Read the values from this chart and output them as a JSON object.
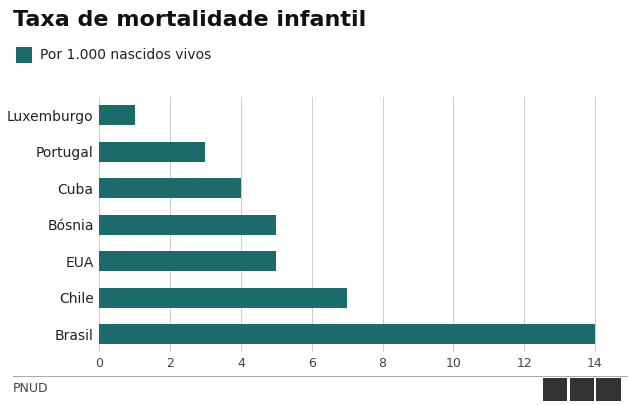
{
  "title": "Taxa de mortalidade infantil",
  "legend_label": "Por 1.000 nascidos vivos",
  "source_left": "PNUD",
  "bar_color": "#1c6b6b",
  "categories": [
    "Brasil",
    "Chile",
    "EUA",
    "Bósnia",
    "Cuba",
    "Portugal",
    "Luxemburgo"
  ],
  "values": [
    14,
    7,
    5,
    5,
    4,
    3,
    1
  ],
  "xlim": [
    0,
    15
  ],
  "xticks": [
    0,
    2,
    4,
    6,
    8,
    10,
    12,
    14
  ],
  "background_color": "#ffffff",
  "title_fontsize": 16,
  "legend_fontsize": 10,
  "label_fontsize": 10,
  "tick_fontsize": 9,
  "footer_fontsize": 9
}
